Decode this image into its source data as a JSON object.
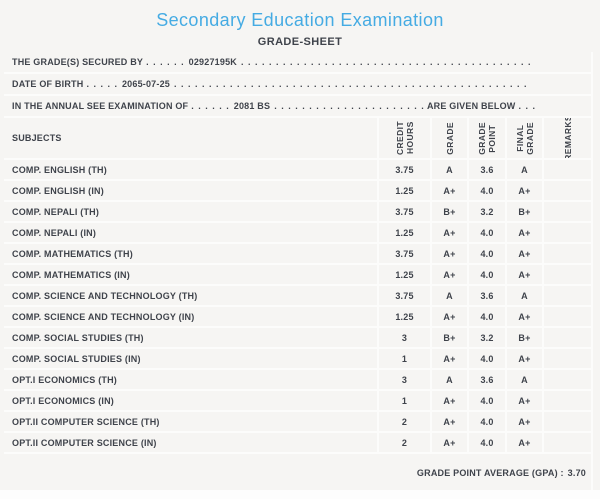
{
  "header": {
    "title": "Secondary Education Examination",
    "subtitle": "GRADE-SHEET"
  },
  "info_lines": [
    {
      "prefix": "THE GRADE(S) SECURED BY",
      "lead_dots": ". . . . . .",
      "value": "02927195K",
      "filler_dots": ". . . . . . . . . . . . . . . . . . . . . . . . . . . . . . . . . . . . . . . . . . . . . . . . . . . . . . . . . . . . . . . . . . . . . . . .",
      "suffix": "",
      "tail_dots": ""
    },
    {
      "prefix": "DATE OF BIRTH",
      "lead_dots": ". . . . .",
      "value": "2065-07-25",
      "filler_dots": ". . . . . . . . . . . . . . . . . . . . . . . . . . . . . . . . . . . . . . . . . . . . . . . . . . . . . . . . . . . . . . . . . . . . . . . .",
      "suffix": "",
      "tail_dots": ""
    },
    {
      "prefix": "IN THE ANNUAL SEE EXAMINATION OF",
      "lead_dots": ". . . . . .",
      "value": "2081 BS",
      "filler_dots": ". . . . . . . . . . . . . . . . . . . . . . . . . . . . . . . . . . . . . . . . . . . . . . . . . . . . . . . . . . . . . . . . . . . . . . . .",
      "suffix": "ARE GIVEN BELOW",
      "tail_dots": ". . ."
    }
  ],
  "table": {
    "subjects_header": "SUBJECTS",
    "columns": [
      "CREDIT\nHOURS",
      "GRADE",
      "GRADE\nPOINT",
      "FINAL\nGRADE",
      "REMARKS"
    ],
    "rows": [
      {
        "subject": "COMP. ENGLISH (TH)",
        "credit_hours": "3.75",
        "grade": "A",
        "grade_point": "3.6",
        "final_grade": "A",
        "remarks": ""
      },
      {
        "subject": "COMP. ENGLISH (IN)",
        "credit_hours": "1.25",
        "grade": "A+",
        "grade_point": "4.0",
        "final_grade": "A+",
        "remarks": ""
      },
      {
        "subject": "COMP. NEPALI (TH)",
        "credit_hours": "3.75",
        "grade": "B+",
        "grade_point": "3.2",
        "final_grade": "B+",
        "remarks": ""
      },
      {
        "subject": "COMP. NEPALI (IN)",
        "credit_hours": "1.25",
        "grade": "A+",
        "grade_point": "4.0",
        "final_grade": "A+",
        "remarks": ""
      },
      {
        "subject": "COMP. MATHEMATICS (TH)",
        "credit_hours": "3.75",
        "grade": "A+",
        "grade_point": "4.0",
        "final_grade": "A+",
        "remarks": ""
      },
      {
        "subject": "COMP. MATHEMATICS (IN)",
        "credit_hours": "1.25",
        "grade": "A+",
        "grade_point": "4.0",
        "final_grade": "A+",
        "remarks": ""
      },
      {
        "subject": "COMP. SCIENCE AND TECHNOLOGY (TH)",
        "credit_hours": "3.75",
        "grade": "A",
        "grade_point": "3.6",
        "final_grade": "A",
        "remarks": ""
      },
      {
        "subject": "COMP. SCIENCE AND TECHNOLOGY (IN)",
        "credit_hours": "1.25",
        "grade": "A+",
        "grade_point": "4.0",
        "final_grade": "A+",
        "remarks": ""
      },
      {
        "subject": "COMP. SOCIAL STUDIES (TH)",
        "credit_hours": "3",
        "grade": "B+",
        "grade_point": "3.2",
        "final_grade": "B+",
        "remarks": ""
      },
      {
        "subject": "COMP. SOCIAL STUDIES (IN)",
        "credit_hours": "1",
        "grade": "A+",
        "grade_point": "4.0",
        "final_grade": "A+",
        "remarks": ""
      },
      {
        "subject": "OPT.I ECONOMICS (TH)",
        "credit_hours": "3",
        "grade": "A",
        "grade_point": "3.6",
        "final_grade": "A",
        "remarks": ""
      },
      {
        "subject": "OPT.I ECONOMICS (IN)",
        "credit_hours": "1",
        "grade": "A+",
        "grade_point": "4.0",
        "final_grade": "A+",
        "remarks": ""
      },
      {
        "subject": "OPT.II COMPUTER SCIENCE (TH)",
        "credit_hours": "2",
        "grade": "A+",
        "grade_point": "4.0",
        "final_grade": "A+",
        "remarks": ""
      },
      {
        "subject": "OPT.II COMPUTER SCIENCE (IN)",
        "credit_hours": "2",
        "grade": "A+",
        "grade_point": "4.0",
        "final_grade": "A+",
        "remarks": ""
      }
    ]
  },
  "footer": {
    "gpa_label": "GRADE POINT AVERAGE (GPA) :",
    "gpa_value": "3.70"
  },
  "colors": {
    "title": "#45abe3",
    "text": "#3f434b",
    "background": "#f6f5f3",
    "separator": "#fcfcfb",
    "bottom_strip": "#fdfdfd"
  }
}
